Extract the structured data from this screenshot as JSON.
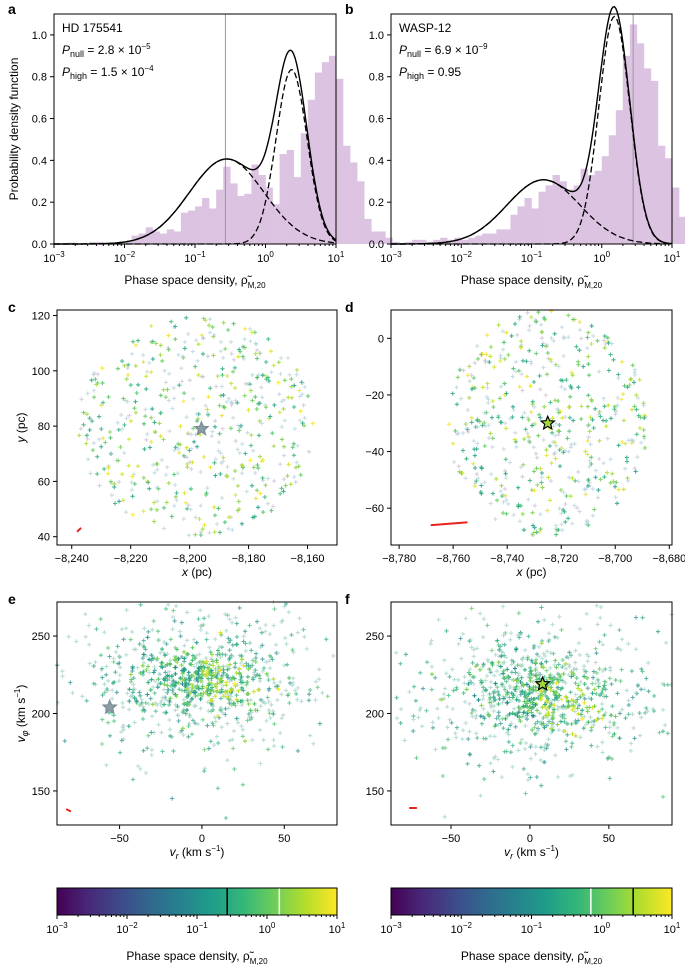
{
  "colors": {
    "bar": "#dcc3e2",
    "curve": "#000000",
    "vline": "#999999",
    "red": "#e8231c",
    "cmap": [
      "#440154",
      "#482878",
      "#3e4989",
      "#31688e",
      "#26828e",
      "#1f9e89",
      "#35b779",
      "#6ece58",
      "#b5de2b",
      "#fde725"
    ]
  },
  "chart_data": [
    {
      "panel": "a",
      "type": "bar",
      "title_lines": [
        "HD 175541"
      ],
      "annotations": [
        {
          "pre": "P",
          "sub": "null",
          "post": " = 2.8 × 10",
          "sup": "−5"
        },
        {
          "pre": "P",
          "sub": "high",
          "post": " = 1.5 × 10",
          "sup": "−4"
        }
      ],
      "ylabel": "Probability density function",
      "xlabel": "Phase space density, ρ̃",
      "xlabel_sub": "M,20",
      "xscale": "log",
      "xlim": [
        0.001,
        10
      ],
      "ylim": [
        0,
        1.1
      ],
      "yticks": [
        0.0,
        0.2,
        0.4,
        0.6,
        0.8,
        1.0
      ],
      "ytick_labels": [
        "0.0",
        "0.2",
        "0.4",
        "0.6",
        "0.8",
        "1.0"
      ],
      "xtick_labels": [
        {
          "base": "10",
          "exp": "−3"
        },
        {
          "base": "10",
          "exp": "−2"
        },
        {
          "base": "10",
          "exp": "−1"
        },
        {
          "base": "10",
          "exp": "0"
        },
        {
          "base": "10",
          "exp": "1"
        }
      ],
      "bins_log10_start": -3,
      "bins_log10_width": 0.1,
      "hist": [
        0,
        0.004,
        0.007,
        0,
        0,
        0.01,
        0.01,
        0,
        0,
        0.01,
        0.01,
        0.04,
        0.05,
        0.08,
        0.06,
        0.05,
        0.07,
        0.06,
        0.15,
        0.16,
        0.18,
        0.22,
        0.17,
        0.26,
        0.37,
        0.29,
        0.23,
        0.24,
        0.38,
        0.33,
        0.27,
        0.19,
        0.43,
        0.45,
        0.32,
        0.53,
        0.69,
        0.82,
        0.87,
        0.9,
        0.79,
        0.47,
        0.39,
        0.3,
        0.12,
        0.06,
        0.06,
        0.03,
        0.01,
        0
      ],
      "components": [
        {
          "weight": 0.54,
          "mu_log10": -0.55,
          "sigma": 0.53
        },
        {
          "weight": 0.46,
          "mu_log10": 0.37,
          "sigma": 0.22
        }
      ],
      "vline": 0.27
    },
    {
      "panel": "b",
      "type": "bar",
      "title_lines": [
        "WASP-12"
      ],
      "annotations": [
        {
          "pre": "P",
          "sub": "null",
          "post": " = 6.9 × 10",
          "sup": "−9"
        },
        {
          "pre": "P",
          "sub": "high",
          "post": " = 0.95",
          "sup": ""
        }
      ],
      "xlabel": "Phase space density, ρ̃",
      "xlabel_sub": "M,20",
      "xscale": "log",
      "xlim": [
        0.001,
        10
      ],
      "ylim": [
        0,
        1.1
      ],
      "yticks": [
        0.0,
        0.2,
        0.4,
        0.6,
        0.8,
        1.0
      ],
      "ytick_labels": [
        "0.0",
        "0.2",
        "0.4",
        "0.6",
        "0.8",
        "1.0"
      ],
      "xtick_labels": [
        {
          "base": "10",
          "exp": "−3"
        },
        {
          "base": "10",
          "exp": "−2"
        },
        {
          "base": "10",
          "exp": "−1"
        },
        {
          "base": "10",
          "exp": "0"
        },
        {
          "base": "10",
          "exp": "1"
        }
      ],
      "bins_log10_start": -3,
      "bins_log10_width": 0.1,
      "hist": [
        0,
        0.005,
        0.01,
        0.02,
        0.02,
        0.01,
        0.02,
        0.03,
        0.02,
        0.03,
        0.02,
        0.03,
        0.04,
        0.05,
        0.05,
        0.07,
        0.07,
        0.14,
        0.18,
        0.22,
        0.17,
        0.25,
        0.28,
        0.33,
        0.3,
        0.26,
        0.28,
        0.36,
        0.33,
        0.35,
        0.42,
        0.52,
        0.64,
        0.9,
        1.05,
        0.96,
        0.84,
        0.78,
        0.47,
        0.41,
        0.27,
        0.13,
        0.04,
        0.01,
        0,
        0,
        0,
        0,
        0,
        0
      ],
      "components": [
        {
          "weight": 0.4,
          "mu_log10": -0.83,
          "sigma": 0.52
        },
        {
          "weight": 0.6,
          "mu_log10": 0.18,
          "sigma": 0.22
        }
      ],
      "vline": 2.8
    },
    {
      "panel": "c",
      "type": "scatter",
      "xlabel_pre": "x",
      "xlabel_post": " (pc)",
      "ylabel_pre": "y",
      "ylabel_post": " (pc)",
      "xlim": [
        -8245,
        -8150
      ],
      "ylim": [
        37,
        122
      ],
      "xticks": [
        -8240,
        -8220,
        -8200,
        -8180,
        -8160
      ],
      "xtick_labels": [
        "−8,240",
        "−8,220",
        "−8,200",
        "−8,180",
        "−8,160"
      ],
      "yticks": [
        40,
        60,
        80,
        100,
        120
      ],
      "ytick_labels": [
        "40",
        "60",
        "80",
        "100",
        "120"
      ],
      "center": [
        -8198,
        80
      ],
      "radius": [
        40,
        40
      ],
      "n_points": 520,
      "seed": 11,
      "star": [
        -8196,
        79
      ],
      "star_style": "gray",
      "red_line": [
        [
          -8238,
          42
        ],
        [
          -8237,
          43
        ]
      ]
    },
    {
      "panel": "d",
      "type": "scatter",
      "xlabel_pre": "x",
      "xlabel_post": " (pc)",
      "ylabel_pre": "",
      "ylabel_post": "",
      "xlim": [
        -8783,
        -8679
      ],
      "ylim": [
        -73,
        10
      ],
      "xticks": [
        -8780,
        -8760,
        -8740,
        -8720,
        -8700,
        -8680
      ],
      "xtick_labels": [
        "−8,780",
        "−8,760",
        "−8,740",
        "−8,720",
        "−8,700",
        "−8,680"
      ],
      "yticks": [
        -60,
        -40,
        -20,
        0
      ],
      "ytick_labels": [
        "−60",
        "−40",
        "−20",
        "0"
      ],
      "center": [
        -8725,
        -30
      ],
      "radius": [
        37,
        40
      ],
      "n_points": 520,
      "seed": 23,
      "star": [
        -8725,
        -30
      ],
      "star_style": "green",
      "red_line": [
        [
          -8768,
          -66
        ],
        [
          -8755,
          -65
        ]
      ]
    },
    {
      "panel": "e",
      "type": "scatter",
      "xlabel_pre": "v",
      "xlabel_sub": "r",
      "xlabel_post": " (km s",
      "xlabel_sup": "−1",
      "xlabel_end": ")",
      "ylabel_pre": "v",
      "ylabel_sub": "φ",
      "ylabel_post": " (km s",
      "ylabel_sup": "−1",
      "ylabel_end": ")",
      "xlim": [
        -88,
        82
      ],
      "ylim": [
        128,
        272
      ],
      "xticks": [
        -50,
        0,
        50
      ],
      "xtick_labels": [
        "−50",
        "0",
        "50"
      ],
      "yticks": [
        150,
        200,
        250
      ],
      "ytick_labels": [
        "150",
        "200",
        "250"
      ],
      "center": [
        0,
        222
      ],
      "radius": [
        80,
        48
      ],
      "n_points": 640,
      "seed": 37,
      "cluster": {
        "center": [
          0,
          222
        ],
        "radius": [
          36,
          18
        ],
        "n": 260
      },
      "star": [
        -56,
        204
      ],
      "star_style": "gray",
      "red_line": [
        [
          -82,
          138
        ],
        [
          -80,
          137
        ]
      ]
    },
    {
      "panel": "f",
      "type": "scatter",
      "xlabel_pre": "v",
      "xlabel_sub": "r",
      "xlabel_post": " (km s",
      "xlabel_sup": "−1",
      "xlabel_end": ")",
      "xlim": [
        -88,
        90
      ],
      "ylim": [
        128,
        272
      ],
      "xticks": [
        -50,
        0,
        50
      ],
      "xtick_labels": [
        "−50",
        "0",
        "50"
      ],
      "yticks": [
        150,
        200,
        250
      ],
      "ytick_labels": [
        "150",
        "200",
        "250"
      ],
      "center": [
        2,
        212
      ],
      "radius": [
        80,
        50
      ],
      "n_points": 640,
      "seed": 53,
      "cluster": {
        "center": [
          5,
          212
        ],
        "radius": [
          36,
          20
        ],
        "n": 260
      },
      "star": [
        8,
        219
      ],
      "star_style": "green",
      "red_line": [
        [
          -76,
          139
        ],
        [
          -72,
          139
        ]
      ]
    },
    {
      "panel": "colorbar-e",
      "type": "colorbar",
      "xlabel": "Phase space density, ρ̃",
      "xlabel_sub": "M,20",
      "range_log10": [
        -3,
        1
      ],
      "xtick_labels": [
        {
          "base": "10",
          "exp": "−3"
        },
        {
          "base": "10",
          "exp": "−2"
        },
        {
          "base": "10",
          "exp": "−1"
        },
        {
          "base": "10",
          "exp": "0"
        },
        {
          "base": "10",
          "exp": "1"
        }
      ],
      "markers": [
        {
          "value": 0.27,
          "color": "#000000"
        },
        {
          "value": 1.5,
          "color": "#ffffff"
        }
      ]
    },
    {
      "panel": "colorbar-f",
      "type": "colorbar",
      "xlabel": "Phase space density, ρ̃",
      "xlabel_sub": "M,20",
      "range_log10": [
        -3,
        1
      ],
      "xtick_labels": [
        {
          "base": "10",
          "exp": "−3"
        },
        {
          "base": "10",
          "exp": "−2"
        },
        {
          "base": "10",
          "exp": "−1"
        },
        {
          "base": "10",
          "exp": "0"
        },
        {
          "base": "10",
          "exp": "1"
        }
      ],
      "markers": [
        {
          "value": 0.7,
          "color": "#ffffff"
        },
        {
          "value": 2.8,
          "color": "#000000"
        }
      ]
    }
  ]
}
